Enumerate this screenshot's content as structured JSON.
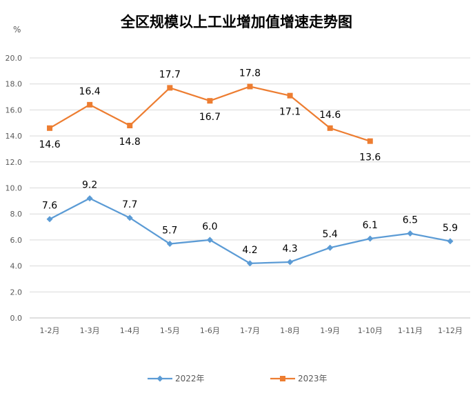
{
  "chart_data": {
    "type": "line",
    "title": "全区规模以上工业增加值增速走势图",
    "ylabel": "%",
    "xlabel": "",
    "categories": [
      "1-2月",
      "1-3月",
      "1-4月",
      "1-5月",
      "1-6月",
      "1-7月",
      "1-8月",
      "1-9月",
      "1-10月",
      "1-11月",
      "1-12月"
    ],
    "ylim": [
      0,
      20
    ],
    "yticks": [
      "0.0",
      "2.0",
      "4.0",
      "6.0",
      "8.0",
      "10.0",
      "12.0",
      "14.0",
      "16.0",
      "18.0",
      "20.0"
    ],
    "grid": true,
    "legend_position": "bottom",
    "series": [
      {
        "name": "2022年",
        "color": "#5B9BD5",
        "marker": "diamond",
        "values": [
          7.6,
          9.2,
          7.7,
          5.7,
          6.0,
          4.2,
          4.3,
          5.4,
          6.1,
          6.5,
          5.9
        ],
        "labels": [
          "7.6",
          "9.2",
          "7.7",
          "5.7",
          "6.0",
          "4.2",
          "4.3",
          "5.4",
          "6.1",
          "6.5",
          "5.9"
        ]
      },
      {
        "name": "2023年",
        "color": "#ED7D31",
        "marker": "square",
        "values": [
          14.6,
          16.4,
          14.8,
          17.7,
          16.7,
          17.8,
          17.1,
          14.6,
          13.6,
          null,
          null
        ],
        "labels": [
          "14.6",
          "16.4",
          "14.8",
          "17.7",
          "16.7",
          "17.8",
          "17.1",
          "14.6",
          "13.6",
          null,
          null
        ]
      }
    ]
  }
}
